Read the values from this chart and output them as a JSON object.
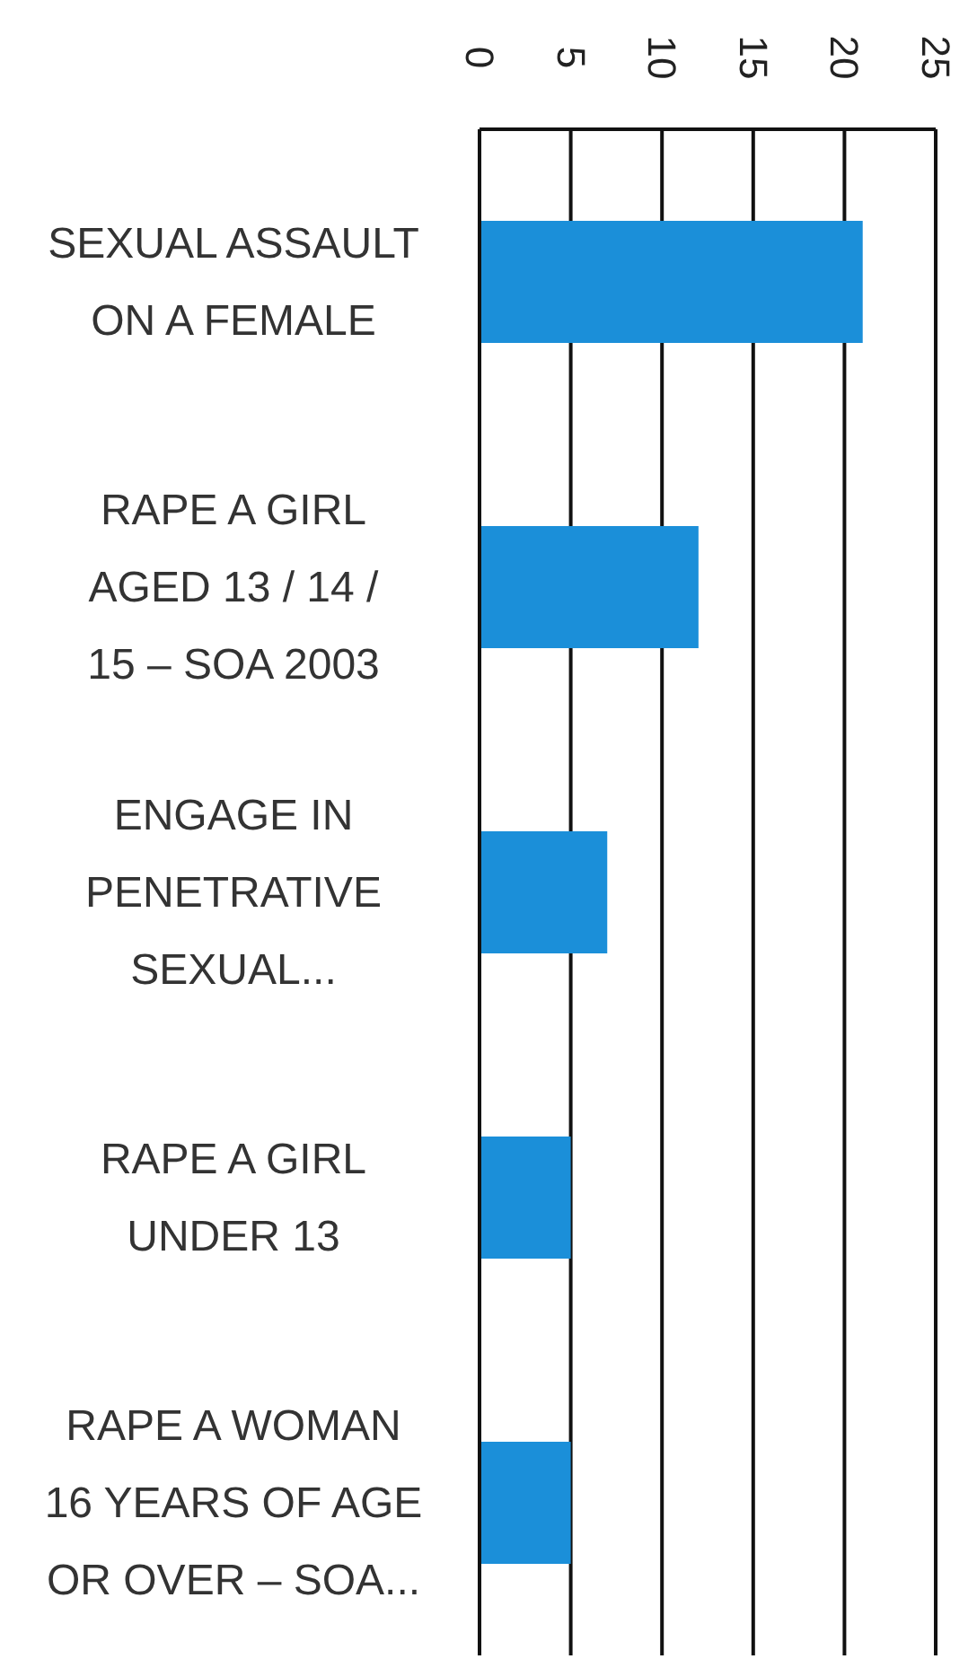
{
  "chart_data": {
    "type": "bar",
    "orientation": "horizontal",
    "categories": [
      "SEXUAL ASSAULT\nON A FEMALE",
      "RAPE A GIRL\nAGED 13 / 14 /\n15 – SOA 2003",
      "ENGAGE IN\nPENETRATIVE\nSEXUAL...",
      "RAPE A GIRL\nUNDER 13",
      "RAPE A WOMAN\n16 YEARS OF AGE\nOR OVER – SOA..."
    ],
    "values": [
      21,
      12,
      7,
      5,
      5
    ],
    "color": "#1b8fd9",
    "xlim": [
      0,
      25
    ],
    "xticks": [
      0,
      5,
      10,
      15,
      20,
      25
    ],
    "grid": "x"
  }
}
